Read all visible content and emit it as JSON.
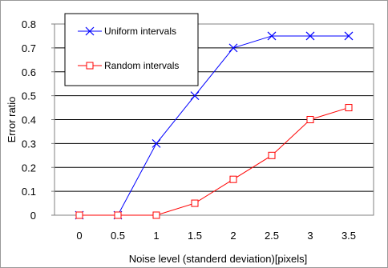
{
  "chart_data": {
    "type": "line",
    "title": "",
    "xlabel": "Noise level (standerd deviation)[pixels]",
    "ylabel": "Error ratio",
    "x": [
      0,
      0.5,
      1,
      1.5,
      2,
      2.5,
      3,
      3.5
    ],
    "x_tick_labels": [
      "0",
      "0.5",
      "1",
      "1.5",
      "2",
      "2.5",
      "3",
      "3.5"
    ],
    "y_tick_labels": [
      "0",
      "0.1",
      "0.2",
      "0.3",
      "0.4",
      "0.5",
      "0.6",
      "0.7",
      "0.8"
    ],
    "ylim": [
      0,
      0.8
    ],
    "grid": "horizontal",
    "legend_position": "top-left",
    "series": [
      {
        "name": "Uniform intervals",
        "color": "#0000ff",
        "marker": "x",
        "values": [
          0,
          0,
          0.3,
          0.5,
          0.7,
          0.75,
          0.75,
          0.75
        ]
      },
      {
        "name": "Random intervals",
        "color": "#ff0000",
        "marker": "square",
        "values": [
          0,
          0,
          0,
          0.05,
          0.15,
          0.25,
          0.4,
          0.45
        ]
      }
    ]
  }
}
